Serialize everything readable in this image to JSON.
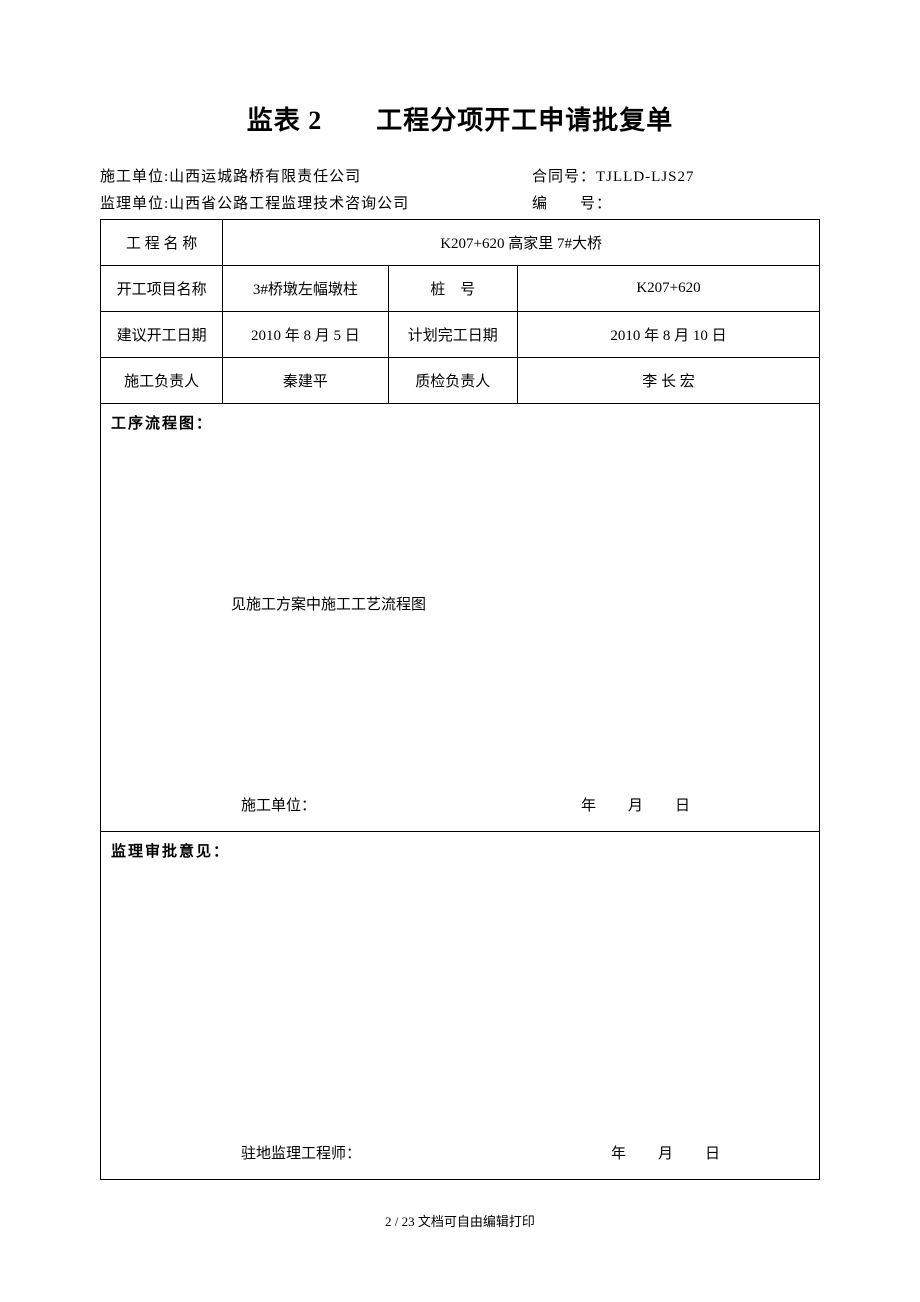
{
  "title": "监表 2　　工程分项开工申请批复单",
  "header": {
    "construction_unit_label": "施工单位:",
    "construction_unit": "山西运城路桥有限责任公司",
    "contract_label": "合同号：",
    "contract_no": "TJLLD-LJS27",
    "supervision_unit_label": "监理单位:",
    "supervision_unit": "山西省公路工程监理技术咨询公司",
    "serial_label": "编　　号：",
    "serial_no": ""
  },
  "rows": {
    "project_name_label": "工 程 名 称",
    "project_name": "K207+620 高家里 7#大桥",
    "start_item_label": "开工项目名称",
    "start_item": "3#桥墩左幅墩柱",
    "stake_label": "桩　号",
    "stake": "K207+620",
    "suggest_date_label": "建议开工日期",
    "suggest_date": "2010 年 8 月 5 日",
    "plan_finish_label": "计划完工日期",
    "plan_finish": "2010 年 8 月 10 日",
    "construct_lead_label": "施工负责人",
    "construct_lead": "秦建平",
    "qc_lead_label": "质检负责人",
    "qc_lead": "李 长 宏"
  },
  "section_a": {
    "header": "工序流程图：",
    "body": "见施工方案中施工工艺流程图",
    "sign_label": "施工单位：",
    "date_y": "年",
    "date_m": "月",
    "date_d": "日"
  },
  "section_b": {
    "header": "监理审批意见：",
    "sign_label": "驻地监理工程师：",
    "date_y": "年",
    "date_m": "月",
    "date_d": "日"
  },
  "footer": {
    "page": "2 / 23",
    "note": "文档可自由编辑打印"
  },
  "style": {
    "background_color": "#ffffff",
    "text_color": "#000000",
    "border_color": "#000000",
    "title_fontsize": 26,
    "body_fontsize": 15,
    "footer_fontsize": 13
  }
}
